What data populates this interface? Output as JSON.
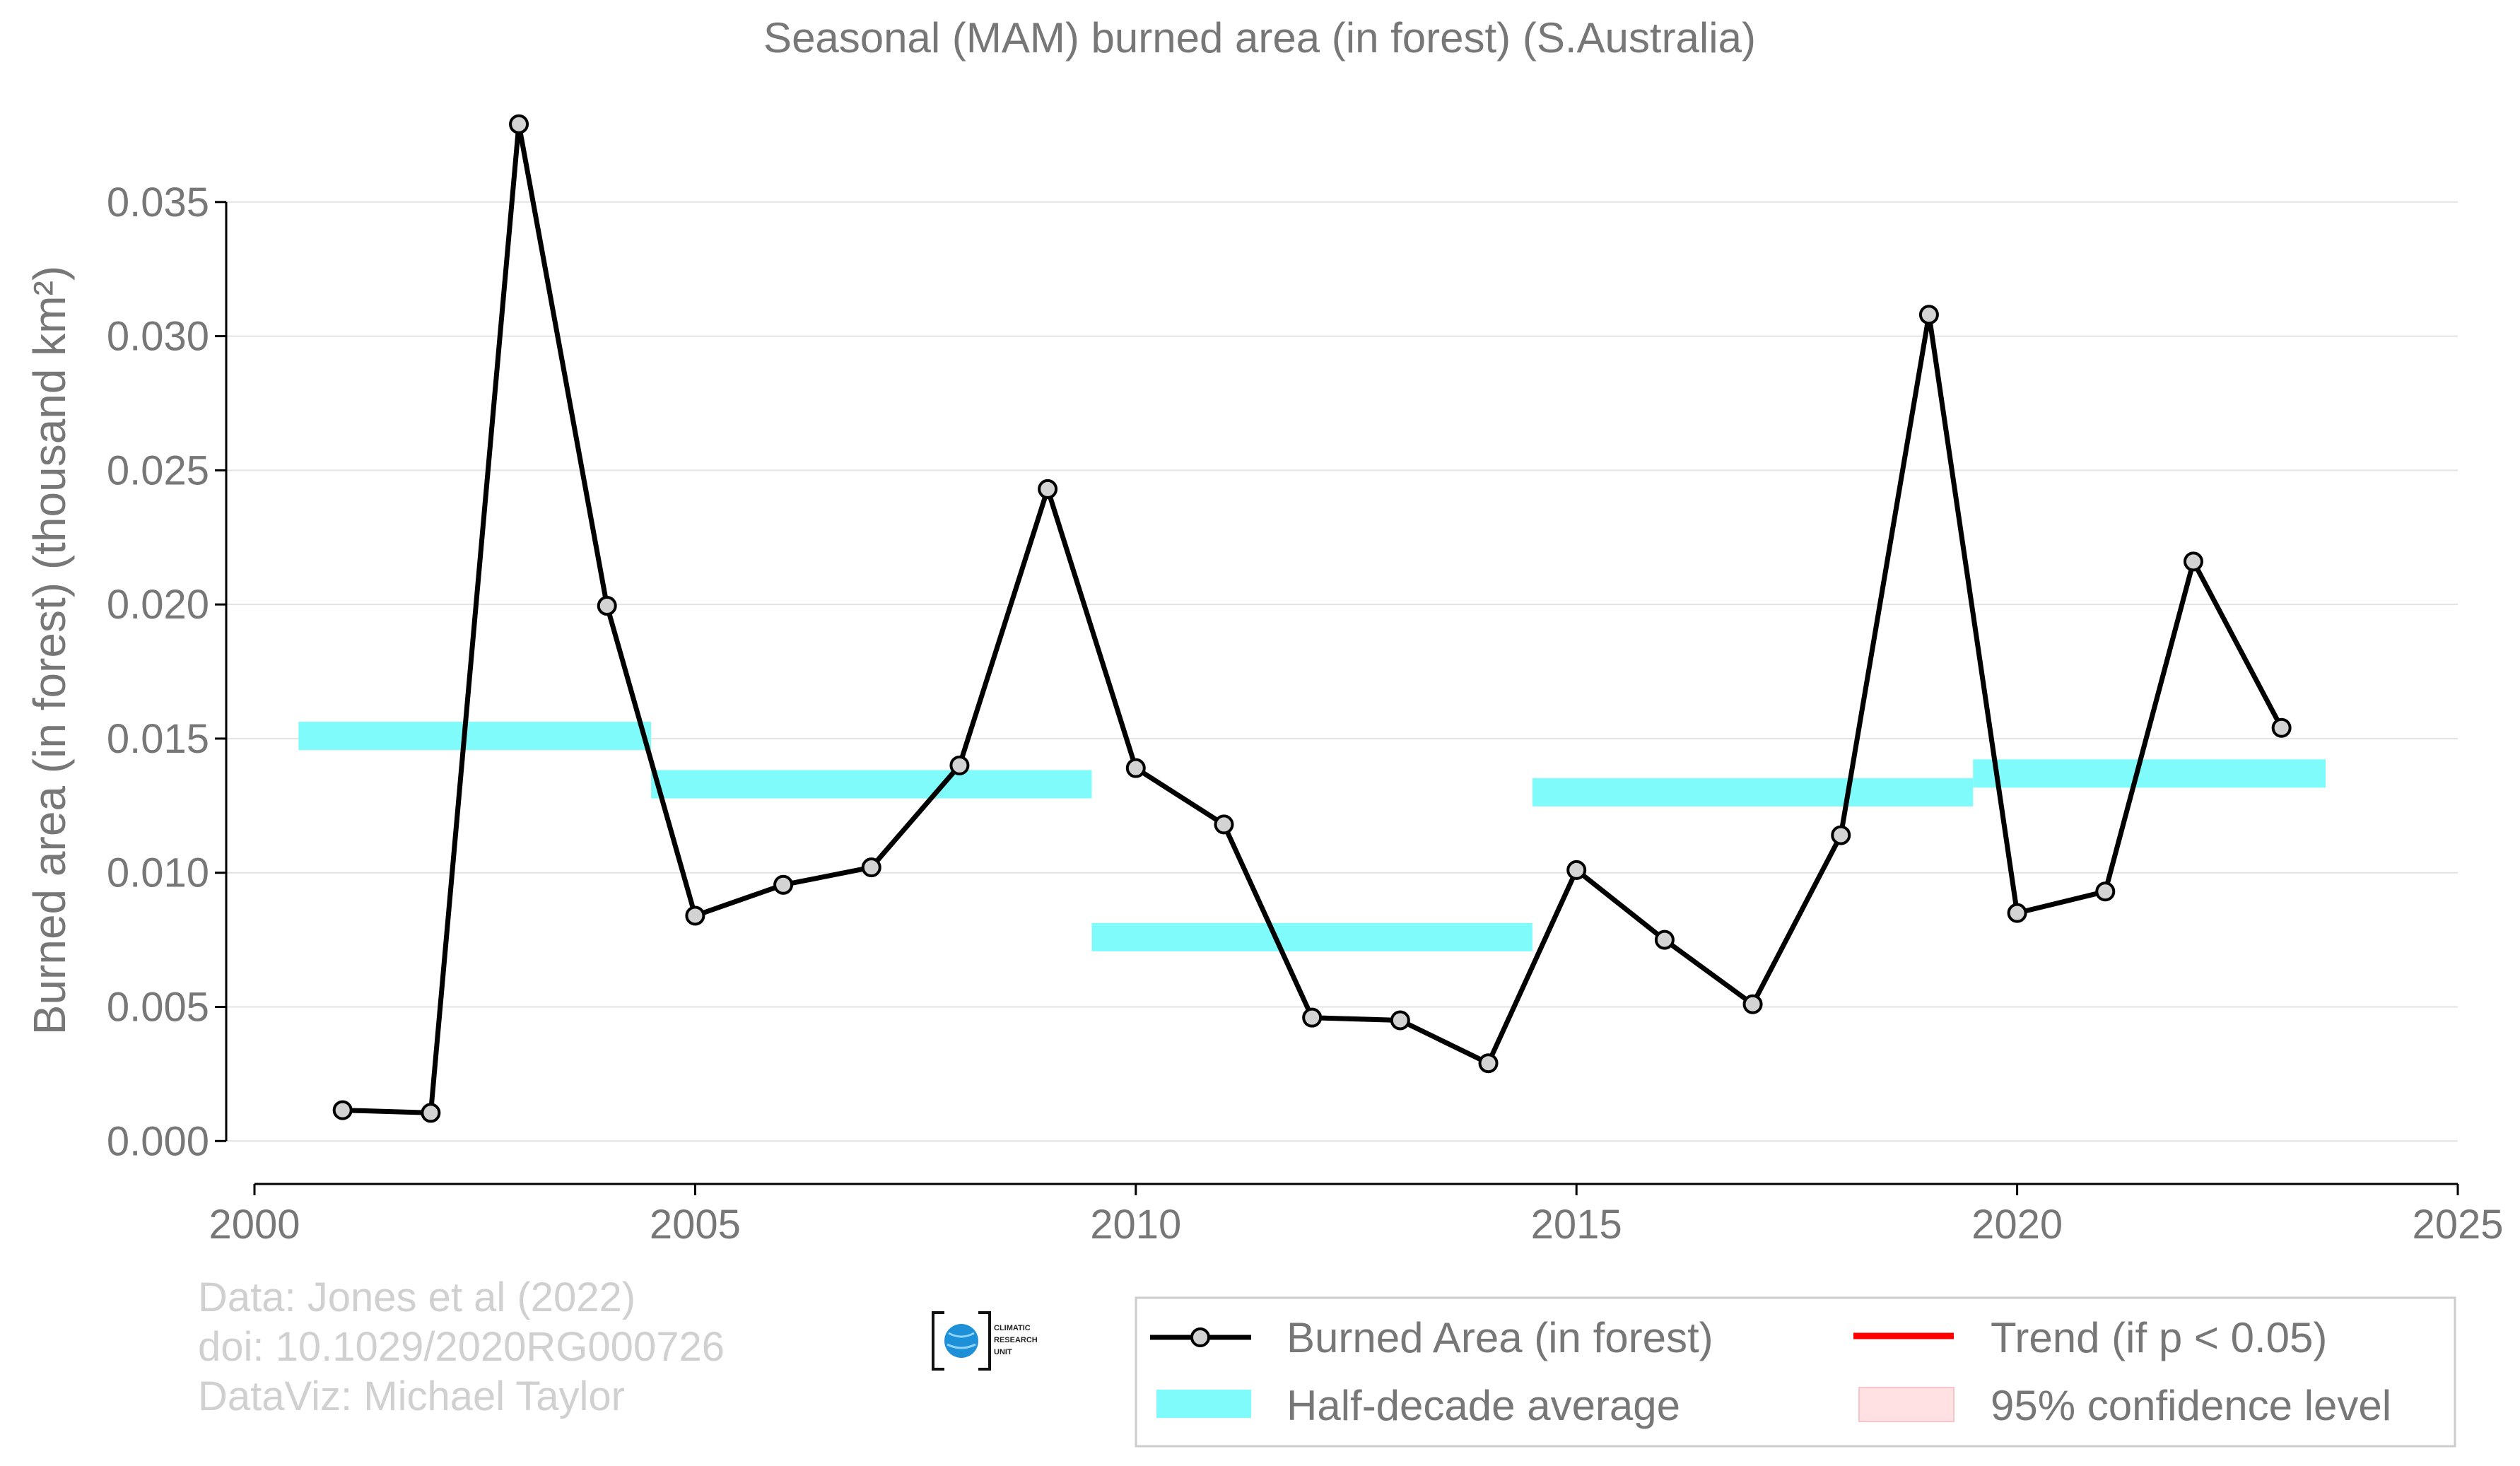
{
  "chart_data": {
    "type": "line",
    "title": "Seasonal (MAM) burned area (in forest) (S.Australia)",
    "ylabel": "Burned area (in forest) (thousand km²)",
    "xlabel": "",
    "xlim": [
      2000,
      2025
    ],
    "ylim": [
      -0.0016,
      0.0395
    ],
    "x_ticks": [
      2000,
      2005,
      2010,
      2015,
      2020,
      2025
    ],
    "x_tick_labels": [
      "2000",
      "2005",
      "2010",
      "2015",
      "2020",
      "2025"
    ],
    "y_ticks": [
      0.0,
      0.005,
      0.01,
      0.015,
      0.02,
      0.025,
      0.03,
      0.035
    ],
    "y_tick_labels": [
      "0.000",
      "0.005",
      "0.010",
      "0.015",
      "0.020",
      "0.025",
      "0.030",
      "0.035"
    ],
    "grid": "horizontal",
    "series": [
      {
        "name": "Burned Area (in forest)",
        "color": "#000000",
        "marker_fill": "#d3d3d3",
        "x": [
          2001,
          2002,
          2003,
          2004,
          2005,
          2006,
          2007,
          2008,
          2009,
          2010,
          2011,
          2012,
          2013,
          2014,
          2015,
          2016,
          2017,
          2018,
          2019,
          2020,
          2021,
          2022,
          2023
        ],
        "y": [
          0.00115,
          0.00105,
          0.0379,
          0.01995,
          0.0084,
          0.00955,
          0.0102,
          0.014,
          0.0243,
          0.0139,
          0.0118,
          0.0046,
          0.0045,
          0.0029,
          0.0101,
          0.0075,
          0.0051,
          0.0114,
          0.0308,
          0.0085,
          0.0093,
          0.0216,
          0.0154
        ]
      }
    ],
    "half_decade_average": {
      "name": "Half-decade average",
      "color": "#7ffbfb",
      "segments": [
        {
          "x_start": 2000.5,
          "x_end": 2004.5,
          "value": 0.0151
        },
        {
          "x_start": 2004.5,
          "x_end": 2009.5,
          "value": 0.0133
        },
        {
          "x_start": 2009.5,
          "x_end": 2014.5,
          "value": 0.0076
        },
        {
          "x_start": 2014.5,
          "x_end": 2019.5,
          "value": 0.013
        },
        {
          "x_start": 2019.5,
          "x_end": 2023.5,
          "value": 0.0137
        }
      ]
    },
    "legend": {
      "position": "bottom-right",
      "entries": [
        {
          "label": "Burned Area (in forest)",
          "kind": "line-marker",
          "color": "#000000"
        },
        {
          "label": "Trend (if p < 0.05)",
          "kind": "line",
          "color": "#ff0000"
        },
        {
          "label": "Half-decade average",
          "kind": "band",
          "color": "#7ffbfb"
        },
        {
          "label": "95% confidence level",
          "kind": "patch",
          "color": "#ffe0e3"
        }
      ]
    }
  },
  "credits": {
    "line1": "Data: Jones et al (2022)",
    "line2": "doi: 10.1029/2020RG000726",
    "line3": "DataViz: Michael Taylor"
  },
  "logo": {
    "line1": "CLIMATIC",
    "line2": "RESEARCH",
    "line3": "UNIT"
  }
}
